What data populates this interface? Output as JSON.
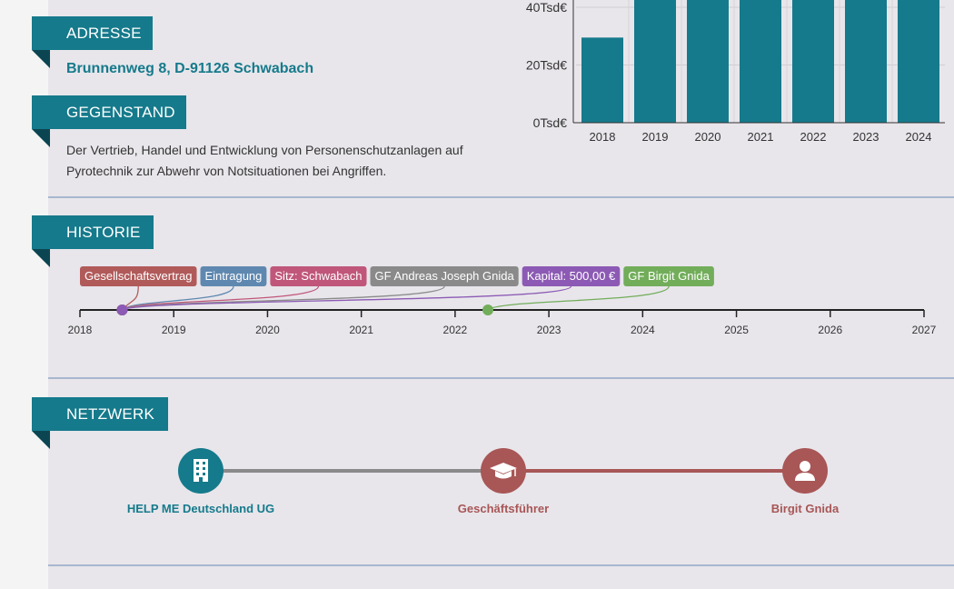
{
  "sections": {
    "address": {
      "title": "ADRESSE",
      "value": "Brunnenweg 8, D-91126 Schwabach"
    },
    "purpose": {
      "title": "GEGENSTAND",
      "text": "Der Vertrieb, Handel und Entwicklung von Personenschutzanlagen auf Pyrotechnik zur Abwehr von Notsituationen bei Angriffen."
    },
    "history": {
      "title": "HISTORIE"
    },
    "network": {
      "title": "NETZWERK"
    }
  },
  "chart_data": {
    "type": "bar",
    "categories": [
      "2018",
      "2019",
      "2020",
      "2021",
      "2022",
      "2023",
      "2024"
    ],
    "values": [
      29500,
      48000,
      48000,
      48000,
      48000,
      48000,
      48000
    ],
    "y_ticks": [
      "0Tsd€",
      "20Tsd€",
      "40Tsd€"
    ],
    "y_tick_values": [
      0,
      20000,
      40000
    ],
    "ylim": [
      0,
      45000
    ],
    "bar_color": "#157a8b",
    "grid": true
  },
  "timeline": {
    "years": [
      "2018",
      "2019",
      "2020",
      "2021",
      "2022",
      "2023",
      "2024",
      "2025",
      "2026",
      "2027"
    ],
    "start": 2018,
    "end": 2027,
    "events": [
      {
        "label": "Gesellschaftsvertrag",
        "color": "#b15a5a",
        "date": 2018.45
      },
      {
        "label": "Eintragung",
        "color": "#5f88b0",
        "date": 2018.45
      },
      {
        "label": "Sitz: Schwabach",
        "color": "#c0577a",
        "date": 2018.45
      },
      {
        "label": "GF Andreas Joseph Gnida",
        "color": "#8a8a8a",
        "date": 2018.45
      },
      {
        "label": "Kapital: 500,00 €",
        "color": "#8c5ab4",
        "date": 2018.45
      },
      {
        "label": "GF Birgit Gnida",
        "color": "#72ad5a",
        "date": 2022.35
      }
    ]
  },
  "network": {
    "nodes": [
      {
        "label": "HELP ME Deutschland UG",
        "icon": "building-icon",
        "color": "#157a8b"
      },
      {
        "label": "Geschäftsführer",
        "icon": "graduation-cap-icon",
        "color": "#a85656"
      },
      {
        "label": "Birgit Gnida",
        "icon": "person-icon",
        "color": "#a85656"
      }
    ],
    "edges": [
      {
        "color": "#8a8a8a"
      },
      {
        "color": "#a85656"
      }
    ]
  }
}
